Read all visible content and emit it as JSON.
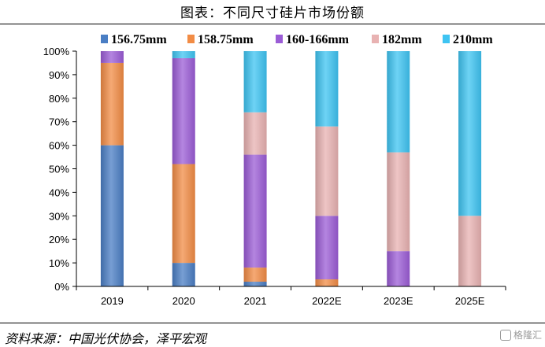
{
  "title": "图表：不同尺寸硅片市场份额",
  "source": "资料来源：中国光伏协会，泽平宏观",
  "watermark": "格隆汇",
  "chart_data": {
    "type": "bar",
    "stacked": true,
    "categories": [
      "2019",
      "2020",
      "2021",
      "2022E",
      "2023E",
      "2025E"
    ],
    "yticks": [
      "0%",
      "10%",
      "20%",
      "30%",
      "40%",
      "50%",
      "60%",
      "70%",
      "80%",
      "90%",
      "100%"
    ],
    "ylim": [
      0,
      100
    ],
    "legend_position": "top",
    "series": [
      {
        "name": "156.75mm",
        "color": "#4a7ec4",
        "values": [
          60,
          10,
          2,
          0,
          0,
          0
        ]
      },
      {
        "name": "158.75mm",
        "color": "#f28c45",
        "values": [
          35,
          42,
          6,
          3,
          0,
          0
        ]
      },
      {
        "name": "160-166mm",
        "color": "#9b5cd6",
        "values": [
          5,
          45,
          48,
          27,
          15,
          0
        ]
      },
      {
        "name": "182mm",
        "color": "#e8b2b2",
        "values": [
          0,
          0,
          18,
          38,
          42,
          30
        ]
      },
      {
        "name": "210mm",
        "color": "#3ec4f2",
        "values": [
          0,
          3,
          26,
          32,
          43,
          70
        ]
      }
    ]
  }
}
